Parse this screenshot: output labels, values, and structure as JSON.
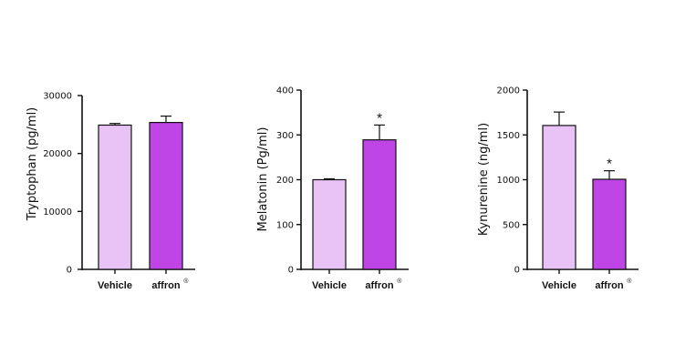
{
  "chart_data": [
    {
      "type": "bar",
      "categories": [
        "Vehicle",
        "affron"
      ],
      "category_superscripts": [
        "",
        "®"
      ],
      "values": [
        24900,
        25350
      ],
      "errors": [
        280,
        1100
      ],
      "significance": [
        "",
        ""
      ],
      "ylabel": "Tryptophan (pg/ml)",
      "ylim": [
        0,
        30000
      ],
      "yticks": [
        0,
        10000,
        20000,
        30000
      ],
      "grid": false
    },
    {
      "type": "bar",
      "categories": [
        "Vehicle",
        "affron"
      ],
      "category_superscripts": [
        "",
        "®"
      ],
      "values": [
        200,
        289
      ],
      "errors": [
        2,
        33
      ],
      "significance": [
        "",
        "*"
      ],
      "ylabel": "Melatonin (Pg/ml)",
      "ylim": [
        0,
        400
      ],
      "yticks": [
        0,
        100,
        200,
        300,
        400
      ],
      "grid": false
    },
    {
      "type": "bar",
      "categories": [
        "Vehicle",
        "affron"
      ],
      "category_superscripts": [
        "",
        "®"
      ],
      "values": [
        1605,
        1005
      ],
      "errors": [
        150,
        95
      ],
      "significance": [
        "",
        "*"
      ],
      "ylabel": "Kynurenine (ng/ml)",
      "ylim": [
        0,
        2000
      ],
      "yticks": [
        0,
        500,
        1000,
        1500,
        2000
      ],
      "grid": false
    }
  ],
  "colors": {
    "vehicle_fill": "#e9c3f5",
    "affron_fill": "#bf45e6",
    "outline": "#111111"
  }
}
